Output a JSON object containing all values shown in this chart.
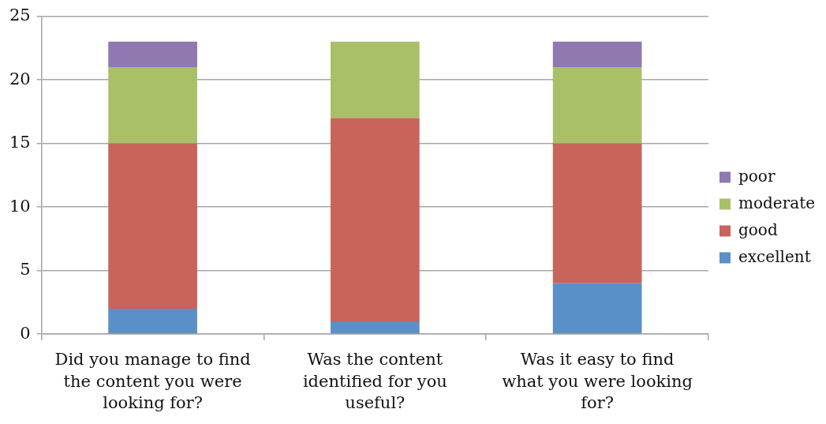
{
  "chart_data": {
    "type": "bar",
    "stacked": true,
    "categories": [
      "Did you manage to find the content you were looking for?",
      "Was the content identified for you useful?",
      "Was it easy to find what you were looking for?"
    ],
    "series": [
      {
        "name": "excellent",
        "color": "#5b8fc7",
        "values": [
          2,
          1,
          4
        ]
      },
      {
        "name": "good",
        "color": "#c9645b",
        "values": [
          13,
          16,
          11
        ]
      },
      {
        "name": "moderate",
        "color": "#a9c069",
        "values": [
          6,
          6,
          6
        ]
      },
      {
        "name": "poor",
        "color": "#8f79b0",
        "values": [
          2,
          0,
          2
        ]
      }
    ],
    "ylim": [
      0,
      25
    ],
    "yticks": [
      0,
      5,
      10,
      15,
      20,
      25
    ],
    "grid": "y",
    "legend": "right"
  }
}
